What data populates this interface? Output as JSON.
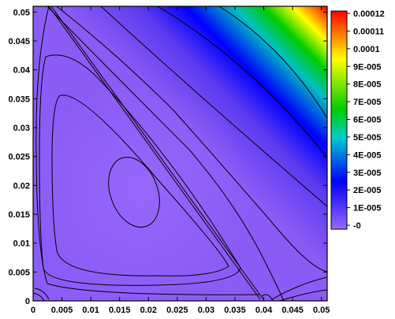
{
  "chart_data": {
    "type": "heatmap",
    "title": "",
    "xlabel": "",
    "ylabel": "",
    "xlim": [
      0,
      0.051
    ],
    "ylim": [
      0,
      0.051
    ],
    "x_ticks": [
      "0",
      "0.005",
      "0.01",
      "0.015",
      "0.02",
      "0.025",
      "0.03",
      "0.035",
      "0.04",
      "0.045",
      "0.05"
    ],
    "y_ticks": [
      "0",
      "0.005",
      "0.01",
      "0.015",
      "0.02",
      "0.025",
      "0.03",
      "0.035",
      "0.04",
      "0.045",
      "0.05"
    ],
    "colorbar": {
      "range": [
        0,
        0.000125
      ],
      "labels": [
        "0.00012",
        "0.00011",
        "0.0001",
        "9E-005",
        "8E-005",
        "7E-005",
        "6E-005",
        "5E-005",
        "4E-005",
        "3E-005",
        "2E-005",
        "1E-005",
        "-0"
      ],
      "colors": [
        "#9966ff",
        "#0000ff",
        "#00cc00",
        "#ffff00",
        "#ff0000"
      ]
    },
    "features": {
      "separatrix": [
        [
          0.003,
          0.051
        ],
        [
          0.037,
          0.0
        ]
      ],
      "vortex_center": [
        0.018,
        0.019
      ],
      "high_corner": [
        0.051,
        0.051
      ]
    },
    "grid": false,
    "legend": "colorbar right"
  }
}
